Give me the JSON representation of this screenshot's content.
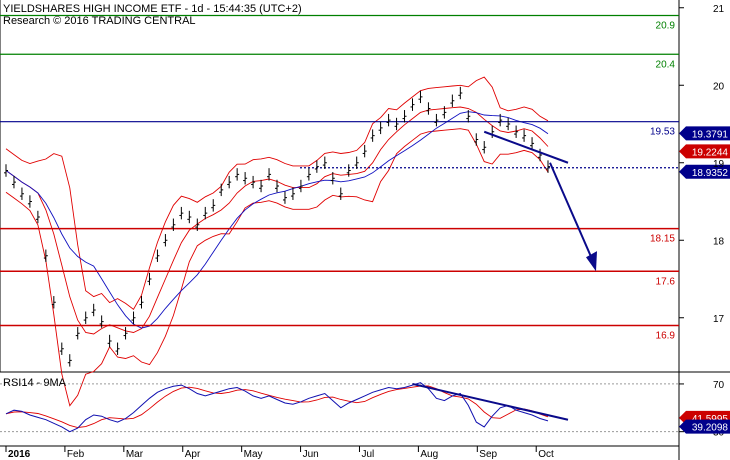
{
  "chart_data": [
    {
      "type": "line",
      "title": "YIELDSHARES HIGH INCOME ETF - 1d - 15:44:35 (UTC+2)",
      "subtitle": "Research © 2016 TRADING CENTRAL",
      "x_labels": [
        "2016",
        "Feb",
        "Mar",
        "Apr",
        "May",
        "Jun",
        "Jul",
        "Aug",
        "Sep",
        "Oct"
      ],
      "ylim": [
        16.3,
        21.1
      ],
      "y_ticks": [
        "21",
        "20",
        "19",
        "18",
        "17"
      ],
      "horizontal_levels": [
        {
          "value": 20.9,
          "label": "20.9",
          "color": "#008000"
        },
        {
          "value": 20.4,
          "label": "20.4",
          "color": "#008000"
        },
        {
          "value": 19.53,
          "label": "19.53",
          "color": "#00008b"
        },
        {
          "value": 18.15,
          "label": "18.15",
          "color": "#cc0000"
        },
        {
          "value": 17.6,
          "label": "17.6",
          "color": "#cc0000"
        },
        {
          "value": 16.9,
          "label": "16.9",
          "color": "#cc0000"
        }
      ],
      "last_price": {
        "value": 18.9352,
        "label": "18.9352",
        "color": "#00008b"
      },
      "ma_tags": [
        {
          "value": 19.3791,
          "label": "19.3791",
          "color": "#00008b"
        },
        {
          "value": 19.2244,
          "label": "19.2244",
          "color": "#cc0000"
        }
      ],
      "close": [
        18.9,
        18.75,
        18.6,
        18.5,
        18.3,
        17.8,
        17.2,
        16.6,
        16.45,
        16.8,
        17.0,
        17.1,
        16.95,
        16.7,
        16.6,
        16.8,
        17.0,
        17.2,
        17.5,
        17.8,
        18.0,
        18.2,
        18.35,
        18.3,
        18.2,
        18.35,
        18.45,
        18.65,
        18.75,
        18.85,
        18.8,
        18.75,
        18.7,
        18.85,
        18.7,
        18.55,
        18.6,
        18.7,
        18.85,
        18.95,
        19.0,
        18.8,
        18.6,
        18.9,
        19.0,
        19.15,
        19.35,
        19.45,
        19.55,
        19.5,
        19.6,
        19.75,
        19.85,
        19.7,
        19.55,
        19.65,
        19.8,
        19.9,
        19.6,
        19.3,
        19.2,
        19.4,
        19.55,
        19.5,
        19.4,
        19.35,
        19.25,
        19.1,
        18.95
      ]
    },
    {
      "type": "line",
      "title": "RSI14 - 9MA",
      "ylim": [
        18,
        80
      ],
      "y_ticks": [
        "70",
        "30"
      ],
      "reference_levels": [
        70,
        30
      ],
      "last_values": [
        {
          "value": 41.5995,
          "label": "41.5995",
          "color": "#cc0000"
        },
        {
          "value": 39.2098,
          "label": "39.2098",
          "color": "#00008b"
        }
      ],
      "rsi": [
        45,
        48,
        47,
        44,
        42,
        40,
        37,
        34,
        30,
        33,
        40,
        44,
        43,
        40,
        38,
        41,
        46,
        52,
        58,
        63,
        66,
        68,
        69,
        66,
        62,
        60,
        62,
        64,
        66,
        67,
        64,
        60,
        58,
        60,
        57,
        54,
        53,
        55,
        58,
        60,
        62,
        56,
        50,
        54,
        57,
        60,
        63,
        65,
        67,
        66,
        67,
        69,
        71,
        66,
        58,
        56,
        60,
        62,
        52,
        38,
        34,
        43,
        50,
        52,
        48,
        46,
        44,
        41,
        39
      ]
    }
  ]
}
